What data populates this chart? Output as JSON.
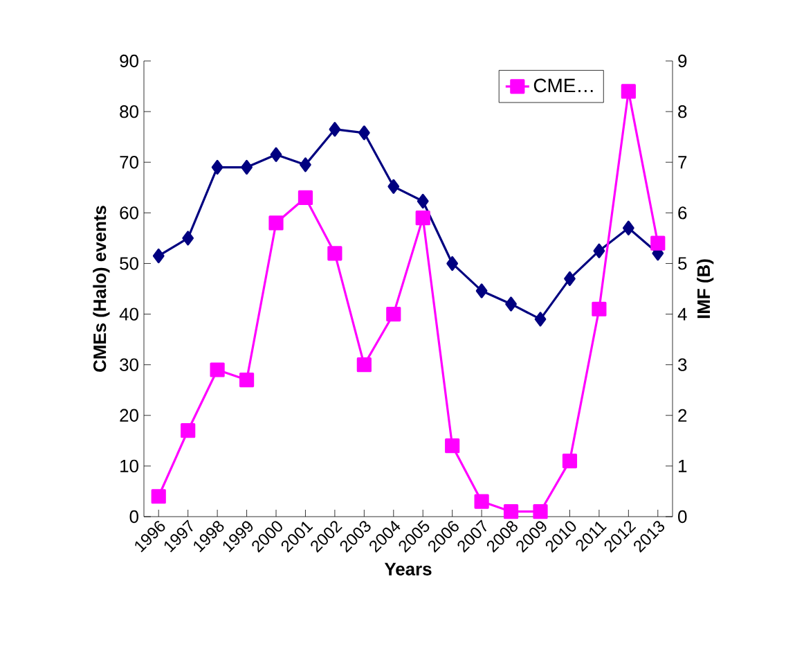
{
  "chart_data": {
    "type": "line",
    "xlabel": "Years",
    "ylabel": "CMEs (Halo) events",
    "y2label": "IMF (B)",
    "categories": [
      "1996",
      "1997",
      "1998",
      "1999",
      "2000",
      "2001",
      "2002",
      "2003",
      "2004",
      "2005",
      "2006",
      "2007",
      "2008",
      "2009",
      "2010",
      "2011",
      "2012",
      "2013"
    ],
    "ylim": [
      0,
      90
    ],
    "yticks": [
      0,
      10,
      20,
      30,
      40,
      50,
      60,
      70,
      80,
      90
    ],
    "y2lim": [
      0,
      9
    ],
    "y2ticks": [
      0,
      1,
      2,
      3,
      4,
      5,
      6,
      7,
      8,
      9
    ],
    "legend": "top right",
    "grid": false,
    "series": [
      {
        "name": "CME…",
        "color": "#ff00ff",
        "marker": "square",
        "values": [
          4,
          17,
          29,
          27,
          58,
          63,
          52,
          30,
          40,
          59,
          14,
          3,
          1,
          1,
          11,
          41,
          84,
          54
        ]
      },
      {
        "color": "#000080",
        "marker": "diamond",
        "axis": "y2",
        "values": [
          5.15,
          5.5,
          6.9,
          6.9,
          7.15,
          6.95,
          7.65,
          7.58,
          6.52,
          6.23,
          5.0,
          4.46,
          4.2,
          3.9,
          4.7,
          5.25,
          5.7,
          5.2
        ]
      }
    ]
  }
}
